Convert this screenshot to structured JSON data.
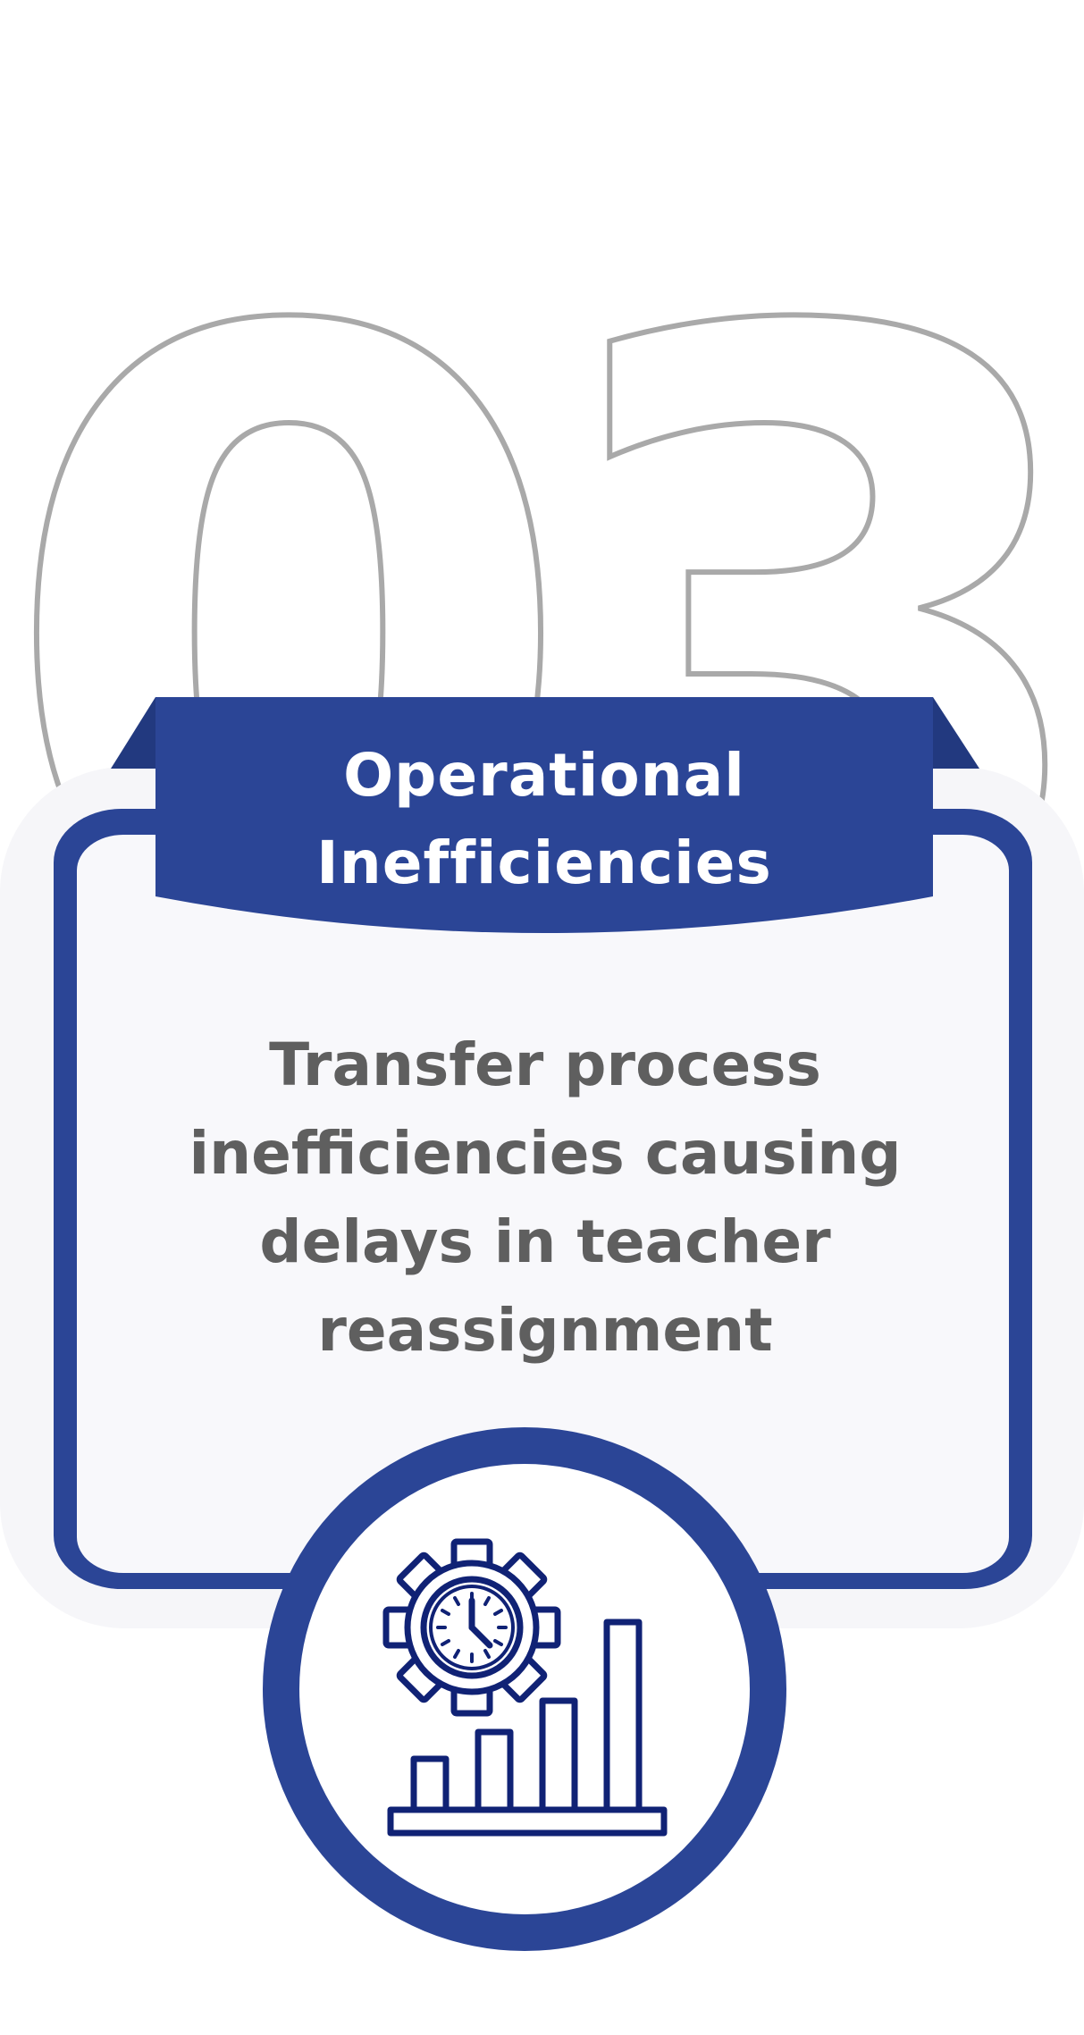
{
  "number": "03",
  "banner": {
    "title": "Operational Inefficiencies"
  },
  "card": {
    "description": "Transfer process inefficiencies causing delays in teacher reassignment"
  },
  "icon": {
    "name": "gear-clock-bar-chart-icon"
  },
  "colors": {
    "primary": "#2b4596",
    "icon_stroke": "#102275",
    "number_outline": "#a9a9a9",
    "card_fill": "#f8f8fb",
    "description_text": "#5f5f5f"
  }
}
